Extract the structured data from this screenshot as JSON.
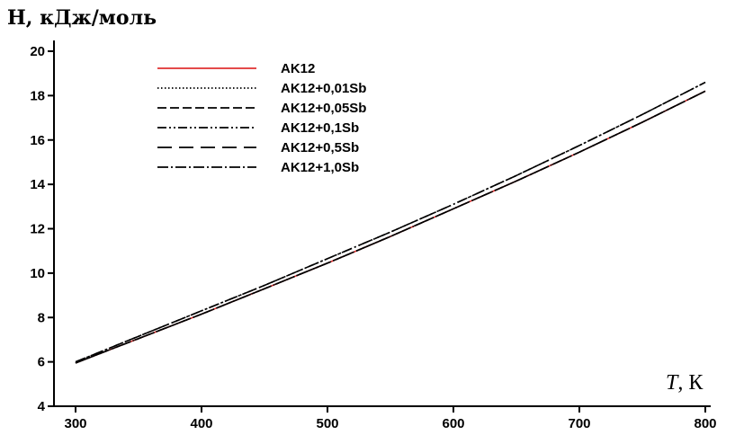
{
  "chart_data": {
    "type": "line",
    "ylabel": "H, кДж/моль",
    "xlabel_symbol": "T",
    "xlabel_unit": ", К",
    "xlim": [
      280,
      800
    ],
    "ylim": [
      4,
      20.5
    ],
    "x_ticks": [
      300,
      400,
      500,
      600,
      700,
      800
    ],
    "y_ticks": [
      4,
      6,
      8,
      10,
      12,
      14,
      16,
      18,
      20
    ],
    "grid": false,
    "legend_position": "top-left",
    "x": [
      300,
      350,
      400,
      450,
      500,
      550,
      600,
      650,
      700,
      750,
      800
    ],
    "series": [
      {
        "name": "AK12",
        "color": "#e03030",
        "dash": "solid",
        "values": [
          5.95,
          7.05,
          8.15,
          9.3,
          10.45,
          11.65,
          12.9,
          14.15,
          15.45,
          16.8,
          18.2
        ]
      },
      {
        "name": "AK12+0,01Sb",
        "color": "#000000",
        "dash": "dotted",
        "values": [
          5.95,
          7.05,
          8.15,
          9.3,
          10.45,
          11.65,
          12.9,
          14.15,
          15.45,
          16.8,
          18.2
        ]
      },
      {
        "name": "AK12+0,05Sb",
        "color": "#000000",
        "dash": "dashed",
        "values": [
          5.95,
          7.05,
          8.15,
          9.3,
          10.45,
          11.65,
          12.9,
          14.15,
          15.45,
          16.8,
          18.2
        ]
      },
      {
        "name": "AK12+0,1Sb",
        "color": "#000000",
        "dash": "dashdotdot",
        "values": [
          6.0,
          7.15,
          8.3,
          9.45,
          10.65,
          11.85,
          13.1,
          14.4,
          15.75,
          17.15,
          18.6
        ]
      },
      {
        "name": "AK12+0,5Sb",
        "color": "#000000",
        "dash": "longdash",
        "values": [
          5.95,
          7.05,
          8.15,
          9.3,
          10.45,
          11.65,
          12.9,
          14.15,
          15.45,
          16.8,
          18.2
        ]
      },
      {
        "name": "AK12+1,0Sb",
        "color": "#000000",
        "dash": "dashdot",
        "values": [
          6.0,
          7.15,
          8.3,
          9.45,
          10.65,
          11.85,
          13.1,
          14.4,
          15.75,
          17.15,
          18.6
        ]
      }
    ]
  }
}
